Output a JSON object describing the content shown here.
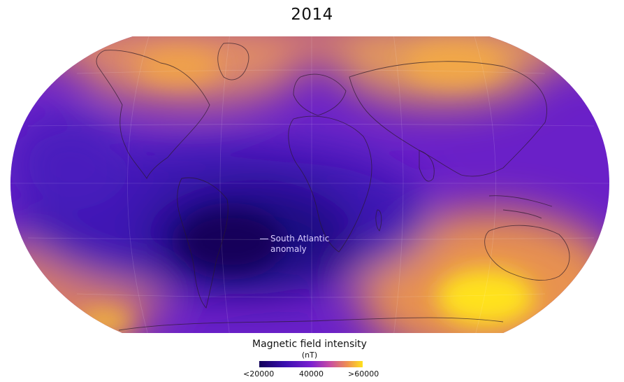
{
  "title": "2014",
  "annotation": {
    "line1": "South Atlantic",
    "line2": "anomaly"
  },
  "legend": {
    "title": "Magnetic field intensity",
    "unit": "(nT)",
    "ticks": [
      "<20000",
      "40000",
      ">60000"
    ],
    "colors": {
      "low": "#12005a",
      "mid": "#7a1fd0",
      "high": "#ffe21c"
    }
  }
}
